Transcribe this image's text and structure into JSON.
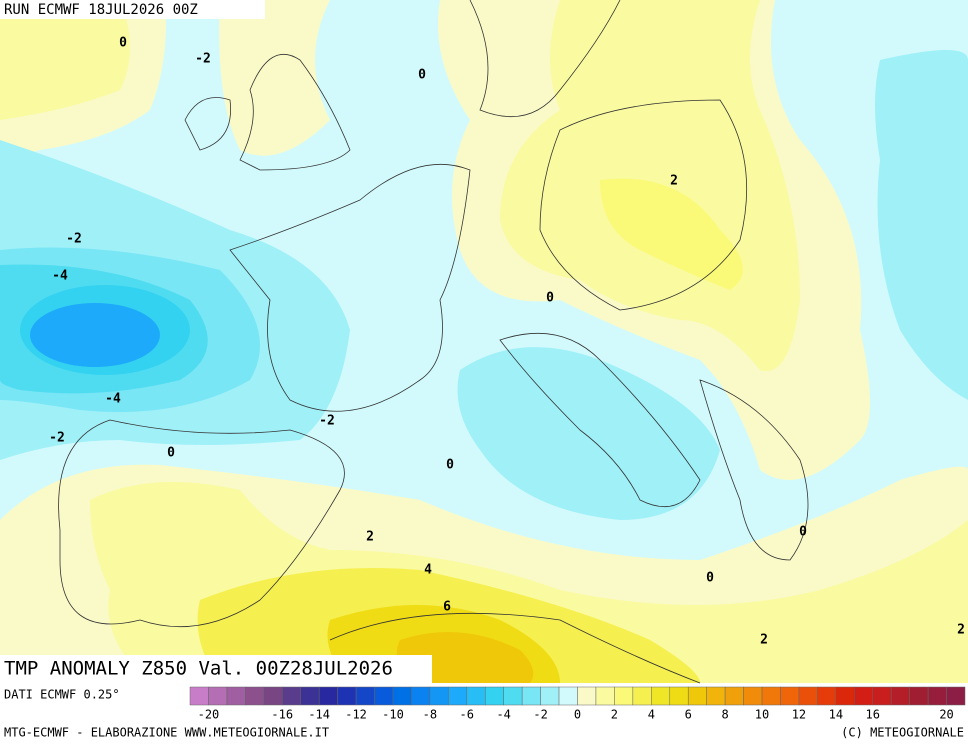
{
  "header": "RUN ECMWF 18JUL2026 00Z",
  "title": "TMP ANOMALY Z850 Val. 00Z28JUL2026",
  "source": "DATI ECMWF 0.25°",
  "credit": "MTG-ECMWF - ELABORAZIONE WWW.METEOGIORNALE.IT",
  "copyright": "(C) METEOGIORNALE",
  "contour_labels": [
    "0",
    "-2",
    "0",
    "2",
    "-2",
    "-4",
    "0",
    "-4",
    "-2",
    "-2",
    "0",
    "0",
    "2",
    "0",
    "4",
    "0",
    "6",
    "2",
    "2"
  ],
  "colorbar": {
    "lim": [
      -21,
      21
    ],
    "ticks": [
      -20,
      -16,
      -14,
      -12,
      -10,
      -8,
      -6,
      -4,
      -2,
      0,
      2,
      4,
      6,
      8,
      10,
      12,
      14,
      16,
      20
    ],
    "colors": [
      "#c87dc8",
      "#b46eb4",
      "#a05fa0",
      "#8c508c",
      "#784682",
      "#5a3c8c",
      "#3c3296",
      "#2828a0",
      "#1e32b4",
      "#1446c8",
      "#0a5adc",
      "#0070e6",
      "#0a82f0",
      "#1496f5",
      "#1eaafa",
      "#28bef5",
      "#32d2f0",
      "#50dcf0",
      "#78e6f5",
      "#a0f0f8",
      "#d2fafc",
      "#fafac8",
      "#fafaa0",
      "#fafa78",
      "#f5f050",
      "#f0e628",
      "#f0dc14",
      "#f0c80a",
      "#f0b40a",
      "#f0a00a",
      "#f08c0a",
      "#f0780a",
      "#f0640a",
      "#eb500a",
      "#e63c0a",
      "#dc280a",
      "#d21e14",
      "#c81e1e",
      "#b41e28",
      "#a01e32",
      "#961e3c",
      "#8c1e46"
    ]
  }
}
